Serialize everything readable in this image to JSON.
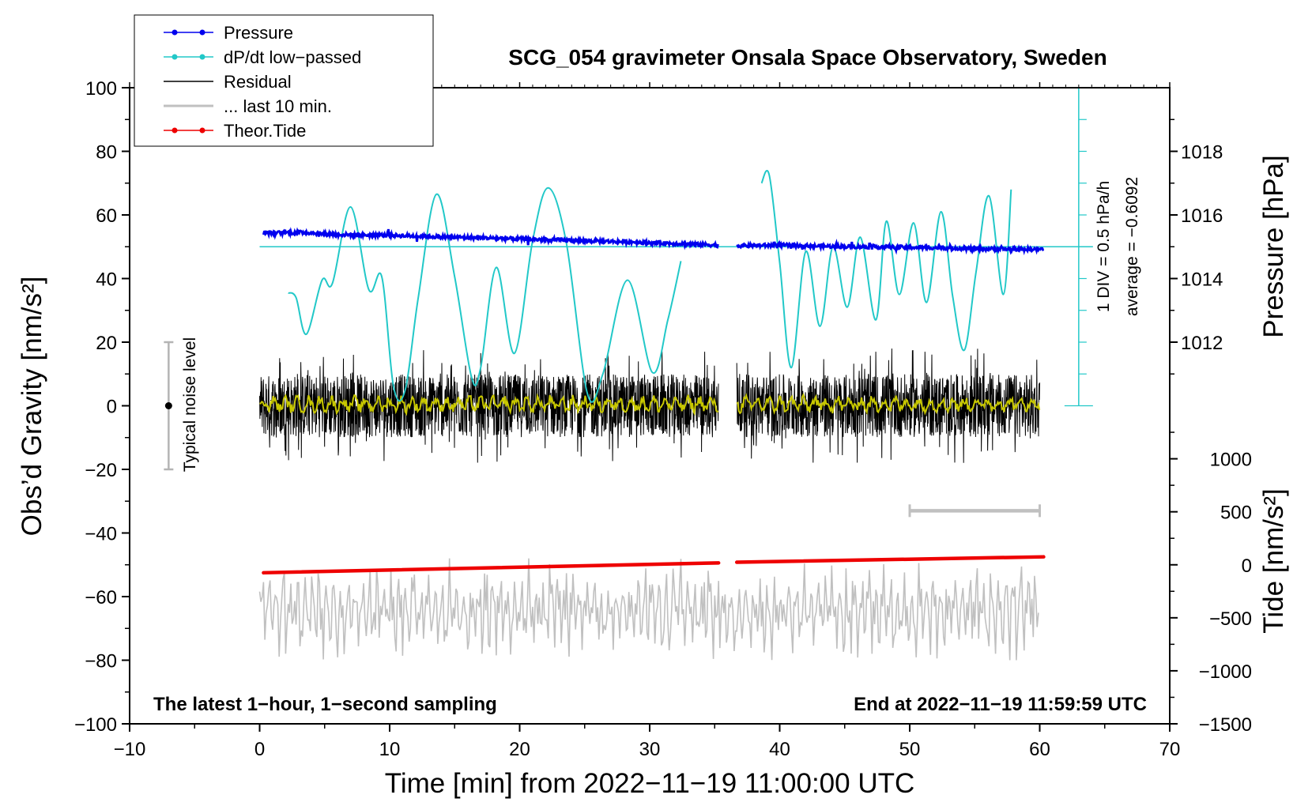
{
  "chart_data": {
    "type": "line",
    "title": "SCG_054 gravimeter Onsala Space Observatory, Sweden",
    "xlabel": "Time [min] from 2022−11−19 11:00:00 UTC",
    "ylabel_left": "Obs’d Gravity [nm/s²]",
    "ylabel_right_top": "Pressure [hPa]",
    "ylabel_right_bottom": "Tide [nm/s²]",
    "xlim": [
      -10,
      70
    ],
    "ylim": [
      -100,
      100
    ],
    "xticks": [
      -10,
      0,
      10,
      20,
      30,
      40,
      50,
      60,
      70
    ],
    "xtick_labels": [
      "−10",
      "0",
      "10",
      "20",
      "30",
      "40",
      "50",
      "60",
      "70"
    ],
    "yticks": [
      -100,
      -80,
      -60,
      -40,
      -20,
      0,
      20,
      40,
      60,
      80,
      100
    ],
    "ytick_labels": [
      "−100",
      "−80",
      "−60",
      "−40",
      "−20",
      "0",
      "20",
      "40",
      "60",
      "80",
      "100"
    ],
    "pressure_axis": {
      "ticks": [
        1012,
        1014,
        1016,
        1018
      ],
      "tick_labels": [
        "1012",
        "1014",
        "1016",
        "1018"
      ],
      "gravity_at_1012": 20,
      "gravity_per_hPa": 10
    },
    "tide_axis": {
      "ticks": [
        1000,
        500,
        0,
        -500,
        -1000,
        -1500
      ],
      "tick_labels": [
        "1000",
        "500",
        "0",
        "−500",
        "−1000",
        "−1500"
      ],
      "gravity_at_0": -50,
      "gravity_per_unit": 0.03333
    },
    "dpdt_scale": {
      "label": "1 DIV = 0.5 hPa/h",
      "average": "average = −0.6092",
      "baseline": 50,
      "bottom": 0,
      "top": 100,
      "x": 63
    },
    "noise_bar": {
      "label": "Typical noise level",
      "x": -7,
      "low": -20,
      "high": 20
    },
    "last10_bar": {
      "x_start": 50,
      "x_end": 60,
      "y": -33
    },
    "series": [
      {
        "name": "Pressure",
        "color": "#0000ee",
        "x": [
          0.3,
          3.5,
          6,
          10,
          14,
          18,
          22,
          26,
          30,
          35.3,
          36.7,
          40,
          44,
          48,
          52,
          56,
          60.3
        ],
        "y": [
          54.3,
          54.5,
          53.8,
          53.6,
          53.1,
          52.7,
          52.2,
          51.8,
          51.3,
          50.5,
          50.3,
          50.5,
          50.1,
          49.9,
          49.7,
          49.3,
          49.2
        ],
        "gap": [
          35.3,
          36.7
        ]
      },
      {
        "name": "dP/dt low−passed",
        "color": "#22c8c8",
        "x": [
          2.2,
          2.8,
          3.6,
          4.8,
          5.6,
          7.0,
          8.4,
          9.4,
          10.3,
          11.2,
          12.2,
          13.6,
          15.0,
          16.3,
          17.0,
          18.2,
          19.6,
          21.0,
          22.2,
          23.6,
          25.2,
          26.4,
          28.3,
          30.2,
          31.4,
          32.4
        ],
        "y": [
          35.5,
          34,
          22.5,
          39.5,
          38.5,
          62.5,
          36.5,
          40.5,
          6,
          5,
          34,
          66.5,
          40.5,
          9,
          12,
          43.5,
          16.5,
          52,
          68.5,
          51,
          4,
          10,
          39.5,
          10.5,
          27,
          45.5
        ],
        "x2": [
          38.6,
          39.2,
          40.0,
          40.9,
          42.0,
          43.1,
          44.1,
          45.2,
          46.2,
          47.4,
          48.2,
          49.2,
          50.3,
          51.3,
          52.4,
          53.3,
          54.2,
          55.1,
          56.1,
          57.2,
          57.8
        ],
        "y2": [
          70,
          72.5,
          45,
          12,
          48.5,
          25,
          50,
          31,
          53,
          27,
          58,
          35,
          57.5,
          32.5,
          61,
          34.5,
          17.5,
          42,
          66,
          35,
          68
        ]
      },
      {
        "name": "Residual",
        "color": "#000000",
        "x_range": [
          0,
          60
        ],
        "gap": [
          35.3,
          36.7
        ],
        "amplitude": 20
      },
      {
        "name": "... last 10 min.",
        "color": "#c0c0c0",
        "x_range": [
          0,
          60
        ],
        "center": -64.5,
        "amplitude": 15
      },
      {
        "name": "Theor.Tide",
        "color": "#ee0000",
        "x": [
          0.3,
          35.3,
          36.7,
          60.3
        ],
        "y": [
          -52.5,
          -49.4,
          -49.2,
          -47.5
        ]
      }
    ],
    "smoothed_residual": {
      "color": "#c8c800",
      "center": 0.5,
      "amplitude": 2.5
    },
    "legend": {
      "position": "top-left",
      "entries": [
        {
          "label": "Pressure",
          "color": "#0000ee",
          "marker": true
        },
        {
          "label": "dP/dt low−passed",
          "color": "#22c8c8",
          "marker": true
        },
        {
          "label": "Residual",
          "color": "#000000",
          "marker": false
        },
        {
          "label": "... last 10 min.",
          "color": "#c0c0c0",
          "marker": false
        },
        {
          "label": "Theor.Tide",
          "color": "#ee0000",
          "marker": true
        }
      ]
    },
    "annotations": {
      "bottom_left": "The latest 1−hour, 1−second sampling",
      "bottom_right": "End at 2022−11−19 11:59:59 UTC"
    }
  }
}
